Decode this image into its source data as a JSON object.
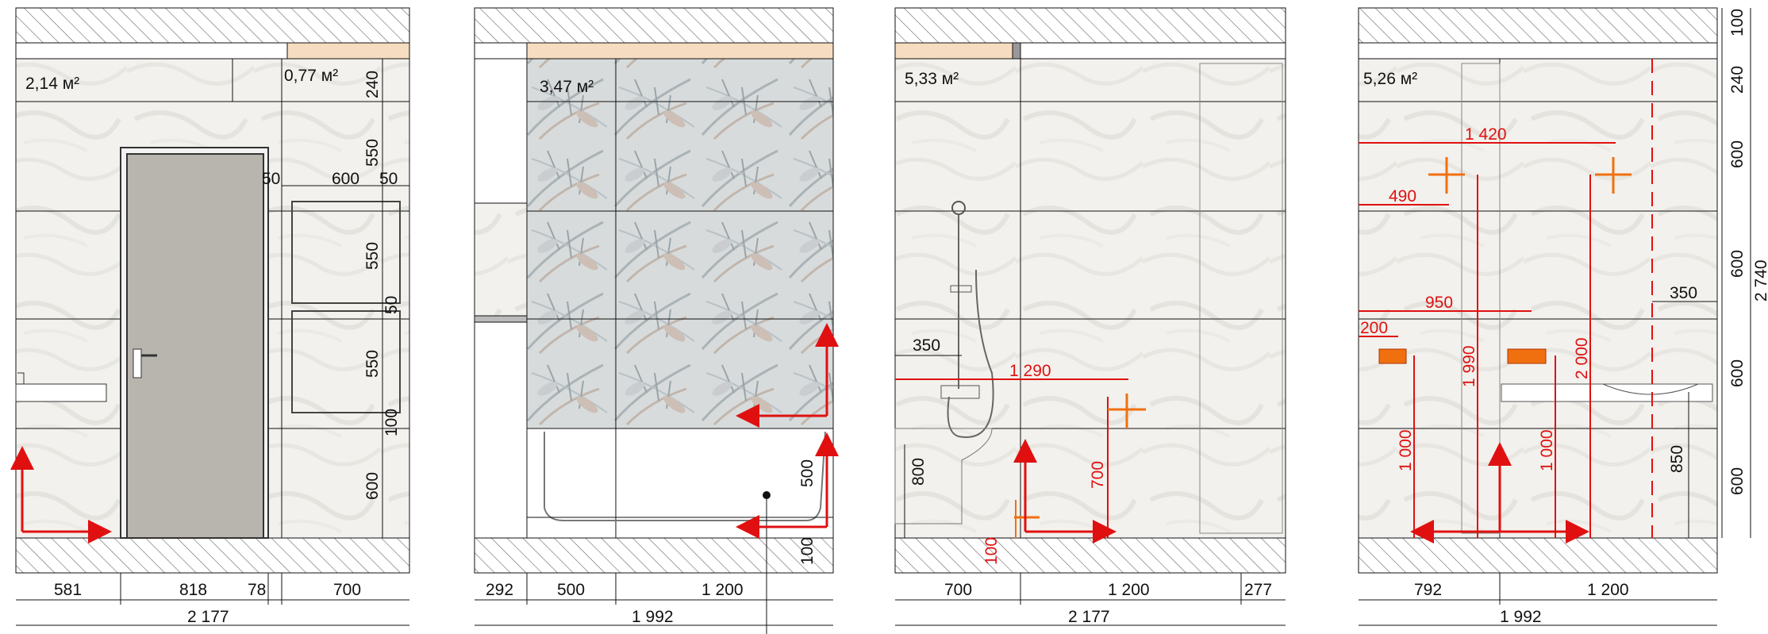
{
  "colors": {
    "line": "#111111",
    "red": "#e01010",
    "orange": "#f07010",
    "tile": "#f1f0ec",
    "plank": "#f6dcc0",
    "door": "#b8b5ae",
    "hatch": "#555555"
  },
  "panels": [
    {
      "id": "wall-1",
      "area": "2,14  м²",
      "area2": "0,77  м²",
      "bottom_dims": [
        "581",
        "818",
        "78",
        "700"
      ],
      "total": "2 177",
      "vertical_dims": [
        "240",
        "550",
        "550",
        "550",
        "100",
        "600"
      ],
      "niche_dims": [
        "50",
        "600",
        "50"
      ],
      "extra_dim": "50"
    },
    {
      "id": "wall-2",
      "area": "3,47  м²",
      "bottom_dims": [
        "292",
        "500",
        "1 200"
      ],
      "total": "1 992",
      "vertical_dims": [
        "500",
        "100"
      ]
    },
    {
      "id": "wall-3",
      "area": "5,33  м²",
      "bottom_dims": [
        "700",
        "1 200",
        "277"
      ],
      "total": "2 177",
      "dims": [
        "350",
        "800"
      ],
      "red_dims": [
        "1 290",
        "700",
        "100"
      ]
    },
    {
      "id": "wall-4",
      "area": "5,26  м²",
      "bottom_dims": [
        "792",
        "1 200"
      ],
      "total": "1 992",
      "right_dims": [
        "100",
        "240",
        "600",
        "600",
        "600",
        "600"
      ],
      "right_total": "2 740",
      "dims": [
        "350",
        "850"
      ],
      "red_dims": [
        "1 420",
        "490",
        "950",
        "200",
        "1 990",
        "2 000",
        "1 000",
        "1 000"
      ]
    }
  ]
}
